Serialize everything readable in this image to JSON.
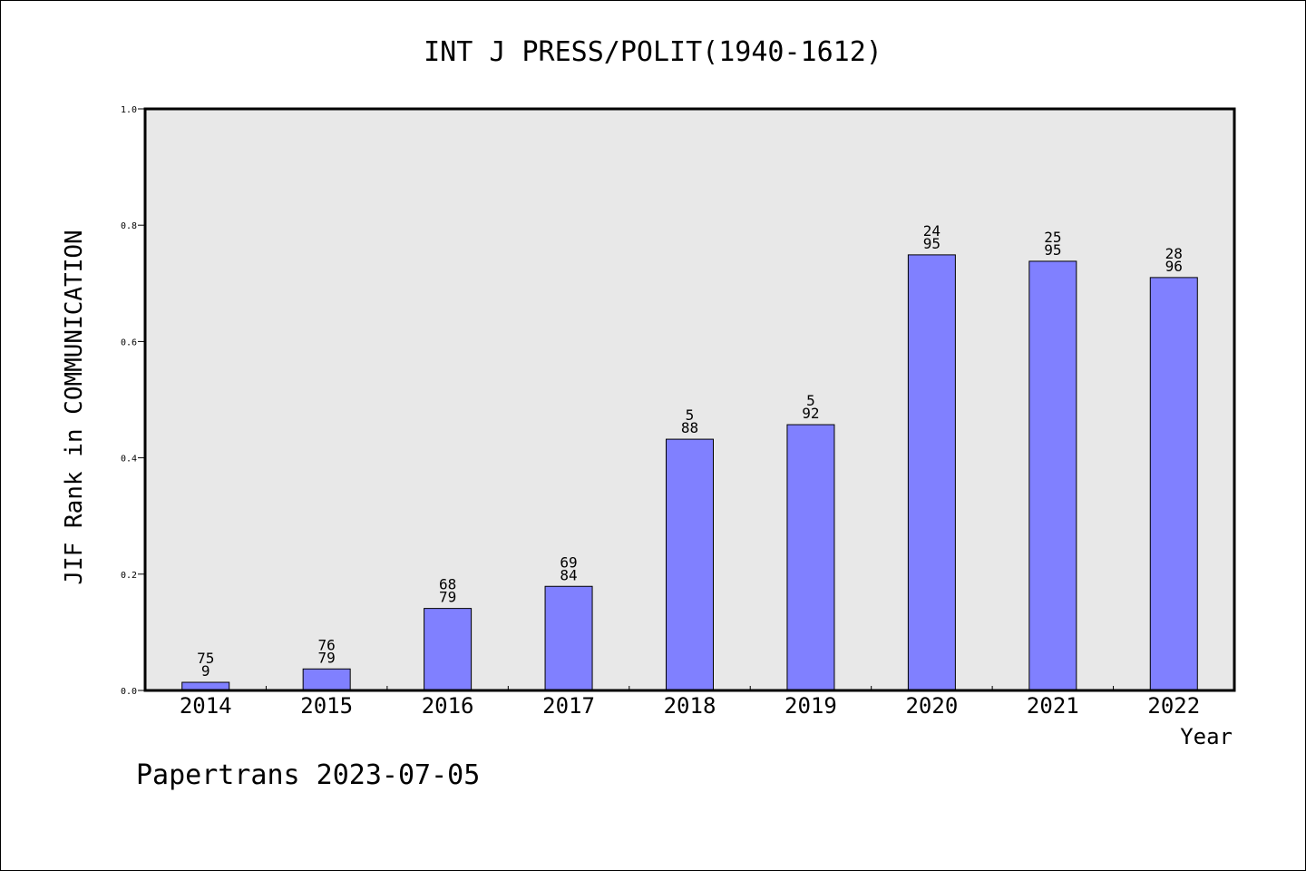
{
  "chart_data": {
    "type": "bar",
    "title": "INT J PRESS/POLIT(1940-1612)",
    "xlabel": "Year",
    "ylabel": "JIF Rank in COMMUNICATION",
    "ylim": [
      0,
      1.0
    ],
    "y_ticks": [
      "0.0",
      "0.2",
      "0.4",
      "0.6",
      "0.8",
      "1.0"
    ],
    "categories": [
      "2014",
      "2015",
      "2016",
      "2017",
      "2018",
      "2019",
      "2020",
      "2021",
      "2022"
    ],
    "values": [
      0.014,
      0.037,
      0.141,
      0.179,
      0.432,
      0.457,
      0.749,
      0.738,
      0.71
    ],
    "data_labels": [
      {
        "top": "75",
        "bottom": "9"
      },
      {
        "top": "76",
        "bottom": "79"
      },
      {
        "top": "68",
        "bottom": "79"
      },
      {
        "top": "69",
        "bottom": "84"
      },
      {
        "top": "5",
        "bottom": "88"
      },
      {
        "top": "5",
        "bottom": "92"
      },
      {
        "top": "24",
        "bottom": "95"
      },
      {
        "top": "25",
        "bottom": "95"
      },
      {
        "top": "28",
        "bottom": "96"
      }
    ],
    "grid": false,
    "bar_color": "#8080ff",
    "plot_background": "#e8e8e8"
  },
  "footer": "Papertrans 2023-07-05"
}
